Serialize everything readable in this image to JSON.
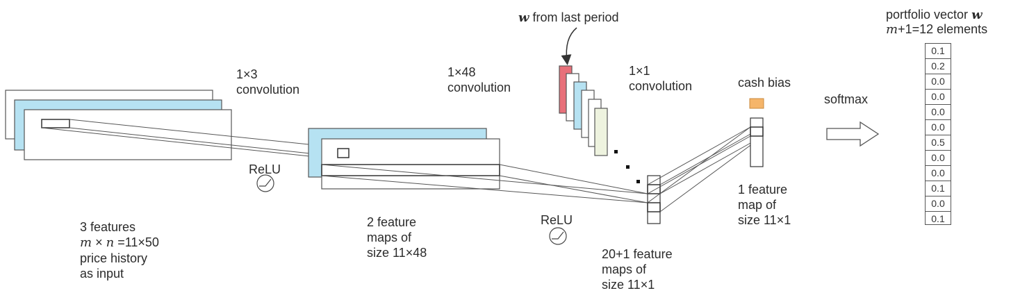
{
  "labels": {
    "w_from_last_period_symbol": "w",
    "w_from_last_period_text": " from last period",
    "portfolio_vector_text": "portfolio vector ",
    "portfolio_vector_symbol": "w",
    "elements_count_symbol": "m",
    "elements_count_text": "+1=12 elements",
    "conv_1x3_line1": "1×3",
    "conv_1x3_line2": "convolution",
    "conv_1x48_line1": "1×48",
    "conv_1x48_line2": "convolution",
    "conv_1x1_line1": "1×1",
    "conv_1x1_line2": "convolution",
    "cash_bias": "cash bias",
    "softmax": "softmax",
    "relu_1": "ReLU",
    "relu_2": "ReLU",
    "input_line1": "3 features",
    "input_m": "m",
    "input_times": " × ",
    "input_n": "n",
    "input_eq": " =11×50",
    "input_line3": "price history",
    "input_line4": "as input",
    "fmap2_line1": "2 feature",
    "fmap2_line2": "maps of",
    "fmap2_line3": "size 11×48",
    "fmap21_line1": "20+1 feature",
    "fmap21_line2": "maps of",
    "fmap21_line3": "size 11×1",
    "fmap1_line1": "1 feature",
    "fmap1_line2": "map of",
    "fmap1_line3": "size 11×1"
  },
  "portfolio_vector": [
    "0.1",
    "0.2",
    "0.0",
    "0.0",
    "0.0",
    "0.0",
    "0.5",
    "0.0",
    "0.0",
    "0.1",
    "0.0",
    "0.1"
  ],
  "colors": {
    "input_highlight": "#b6e2f2",
    "last_w_red": "#e8707a",
    "cash_bias_orange": "#f5b56a",
    "pale_green": "#eef3df",
    "outline": "#555555"
  }
}
